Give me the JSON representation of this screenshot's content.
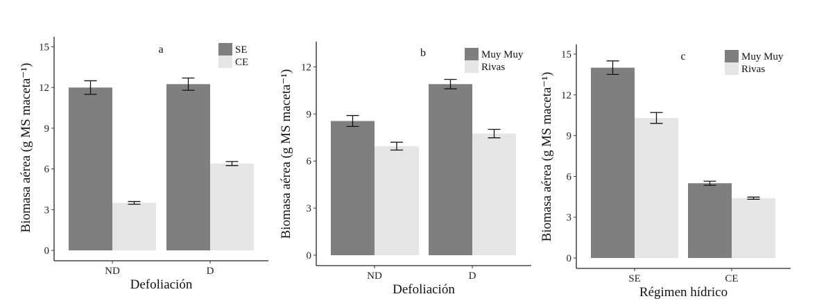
{
  "chart_data": [
    {
      "type": "bar",
      "panel_label": "a",
      "categories": [
        "ND",
        "D"
      ],
      "xlabel": "Defoliación",
      "ylabel": "Biomasa aérea (g MS maceta⁻¹)",
      "ylim": [
        0,
        15
      ],
      "yticks": [
        0,
        3,
        6,
        9,
        12,
        15
      ],
      "grid": false,
      "legend": "top-right",
      "series": [
        {
          "name": "SE",
          "color": "#7f7f7f",
          "values": [
            12.0,
            12.25
          ],
          "errors": [
            0.5,
            0.45
          ]
        },
        {
          "name": "CE",
          "color": "#e5e5e5",
          "values": [
            3.5,
            6.4
          ],
          "errors": [
            0.1,
            0.15
          ]
        }
      ]
    },
    {
      "type": "bar",
      "panel_label": "b",
      "categories": [
        "ND",
        "D"
      ],
      "xlabel": "Defoliación",
      "ylabel": "Biomasa aérea (g MS maceta⁻¹)",
      "ylim": [
        0,
        12
      ],
      "yticks": [
        0,
        3,
        6,
        9,
        12
      ],
      "grid": false,
      "legend": "top-right",
      "series": [
        {
          "name": "Muy Muy",
          "color": "#7f7f7f",
          "values": [
            8.55,
            10.9
          ],
          "errors": [
            0.35,
            0.3
          ]
        },
        {
          "name": "Rivas",
          "color": "#e5e5e5",
          "values": [
            6.95,
            7.75
          ],
          "errors": [
            0.25,
            0.27
          ]
        }
      ]
    },
    {
      "type": "bar",
      "panel_label": "c",
      "categories": [
        "SE",
        "CE"
      ],
      "xlabel": "Régimen hídrico",
      "ylabel": "Biomasa aérea (g MS maceta⁻¹)",
      "ylim": [
        0,
        15
      ],
      "yticks": [
        0,
        3,
        6,
        9,
        12,
        15
      ],
      "grid": false,
      "legend": "top-right",
      "series": [
        {
          "name": "Muy Muy",
          "color": "#7f7f7f",
          "values": [
            14.0,
            5.5
          ],
          "errors": [
            0.5,
            0.15
          ]
        },
        {
          "name": "Rivas",
          "color": "#e5e5e5",
          "values": [
            10.3,
            4.4
          ],
          "errors": [
            0.4,
            0.08
          ]
        }
      ]
    }
  ]
}
